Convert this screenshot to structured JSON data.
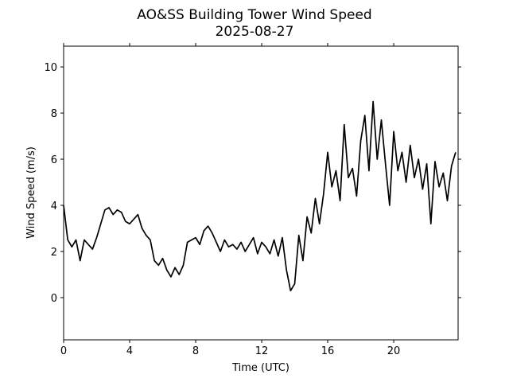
{
  "chart_data": {
    "type": "line",
    "title": [
      "AO&SS Building Tower Wind Speed",
      "2025-08-27"
    ],
    "xlabel": "Time (UTC)",
    "ylabel": "Wind Speed (m/s)",
    "xlim": [
      0,
      23.9
    ],
    "ylim": [
      -1.83,
      10.9
    ],
    "xticks": [
      0,
      4,
      8,
      12,
      16,
      20
    ],
    "yticks": [
      0,
      2,
      4,
      6,
      8,
      10
    ],
    "grid": false,
    "series": [
      {
        "name": "Wind Speed",
        "color": "#000000",
        "x": [
          0,
          0.25,
          0.5,
          0.75,
          1,
          1.25,
          1.5,
          1.75,
          2,
          2.25,
          2.5,
          2.75,
          3,
          3.25,
          3.5,
          3.75,
          4,
          4.25,
          4.5,
          4.75,
          5,
          5.25,
          5.5,
          5.75,
          6,
          6.25,
          6.5,
          6.75,
          7,
          7.25,
          7.5,
          7.75,
          8,
          8.25,
          8.5,
          8.75,
          9,
          9.25,
          9.5,
          9.75,
          10,
          10.25,
          10.5,
          10.75,
          11,
          11.25,
          11.5,
          11.75,
          12,
          12.25,
          12.5,
          12.75,
          13,
          13.25,
          13.5,
          13.75,
          14,
          14.25,
          14.5,
          14.75,
          15,
          15.25,
          15.5,
          15.75,
          16,
          16.25,
          16.5,
          16.75,
          17,
          17.25,
          17.5,
          17.75,
          18,
          18.25,
          18.5,
          18.75,
          19,
          19.25,
          19.5,
          19.75,
          20,
          20.25,
          20.5,
          20.75,
          21,
          21.25,
          21.5,
          21.75,
          22,
          22.25,
          22.5,
          22.75,
          23,
          23.25,
          23.5,
          23.75
        ],
        "values": [
          4.0,
          2.5,
          2.2,
          2.5,
          1.6,
          2.5,
          2.3,
          2.1,
          2.6,
          3.2,
          3.8,
          3.9,
          3.6,
          3.8,
          3.7,
          3.3,
          3.2,
          3.4,
          3.6,
          3.0,
          2.7,
          2.5,
          1.6,
          1.4,
          1.7,
          1.2,
          0.9,
          1.3,
          1.0,
          1.4,
          2.4,
          2.5,
          2.6,
          2.3,
          2.9,
          3.1,
          2.8,
          2.4,
          2.0,
          2.5,
          2.2,
          2.3,
          2.1,
          2.4,
          2.0,
          2.3,
          2.6,
          1.9,
          2.4,
          2.2,
          1.9,
          2.5,
          1.8,
          2.6,
          1.2,
          0.3,
          0.6,
          2.7,
          1.6,
          3.5,
          2.8,
          4.3,
          3.2,
          4.5,
          6.3,
          4.8,
          5.5,
          4.2,
          7.5,
          5.2,
          5.6,
          4.4,
          6.8,
          7.9,
          5.5,
          8.5,
          6.0,
          7.7,
          5.8,
          4.0,
          7.2,
          5.5,
          6.3,
          5.0,
          6.6,
          5.2,
          6.0,
          4.7,
          5.8,
          3.2,
          5.9,
          4.8,
          5.4,
          4.2,
          5.7,
          6.3
        ]
      }
    ]
  }
}
